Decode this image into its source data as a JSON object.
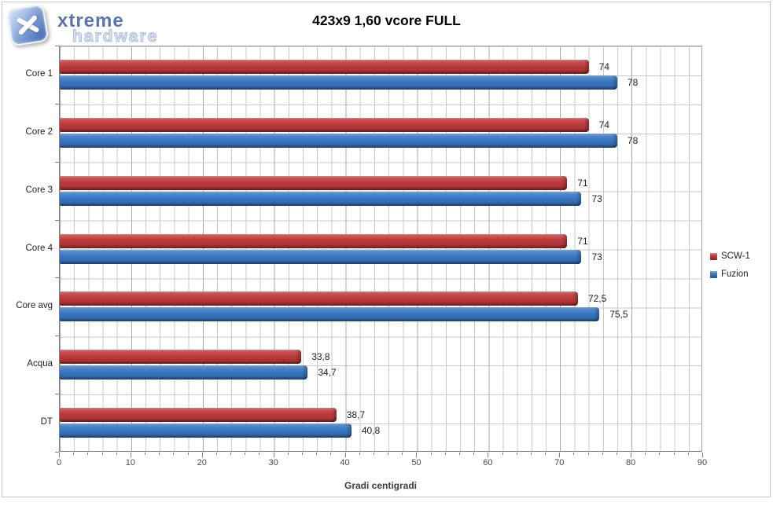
{
  "logo": {
    "brand_top": "xtreme",
    "brand_bottom": "hardware",
    "tile_icon": "x-mark-icon"
  },
  "chart_data": {
    "type": "bar",
    "orientation": "horizontal",
    "title": "423x9 1,60 vcore FULL",
    "xlabel": "Gradi centigradi",
    "ylabel": "",
    "xlim": [
      0,
      90
    ],
    "x_major_step": 10,
    "x_minor_step": 2,
    "x_tick_labels": [
      "0",
      "10",
      "20",
      "30",
      "40",
      "50",
      "60",
      "70",
      "80",
      "90"
    ],
    "grid": "major+minor, vertical and horizontal",
    "legend_position": "right",
    "categories": [
      "Core 1",
      "Core 2",
      "Core 3",
      "Core 4",
      "Core avg",
      "Acqua",
      "DT"
    ],
    "series": [
      {
        "name": "SCW-1",
        "color": "#bf3a3c",
        "values": [
          74,
          74,
          71,
          71,
          72.5,
          33.8,
          38.7
        ],
        "labels": [
          "74",
          "74",
          "71",
          "71",
          "72,5",
          "33,8",
          "38,7"
        ]
      },
      {
        "name": "Fuzion",
        "color": "#3a77c4",
        "values": [
          78,
          78,
          73,
          73,
          75.5,
          34.7,
          40.8
        ],
        "labels": [
          "78",
          "78",
          "73",
          "73",
          "75,5",
          "34,7",
          "40,8"
        ]
      }
    ]
  }
}
